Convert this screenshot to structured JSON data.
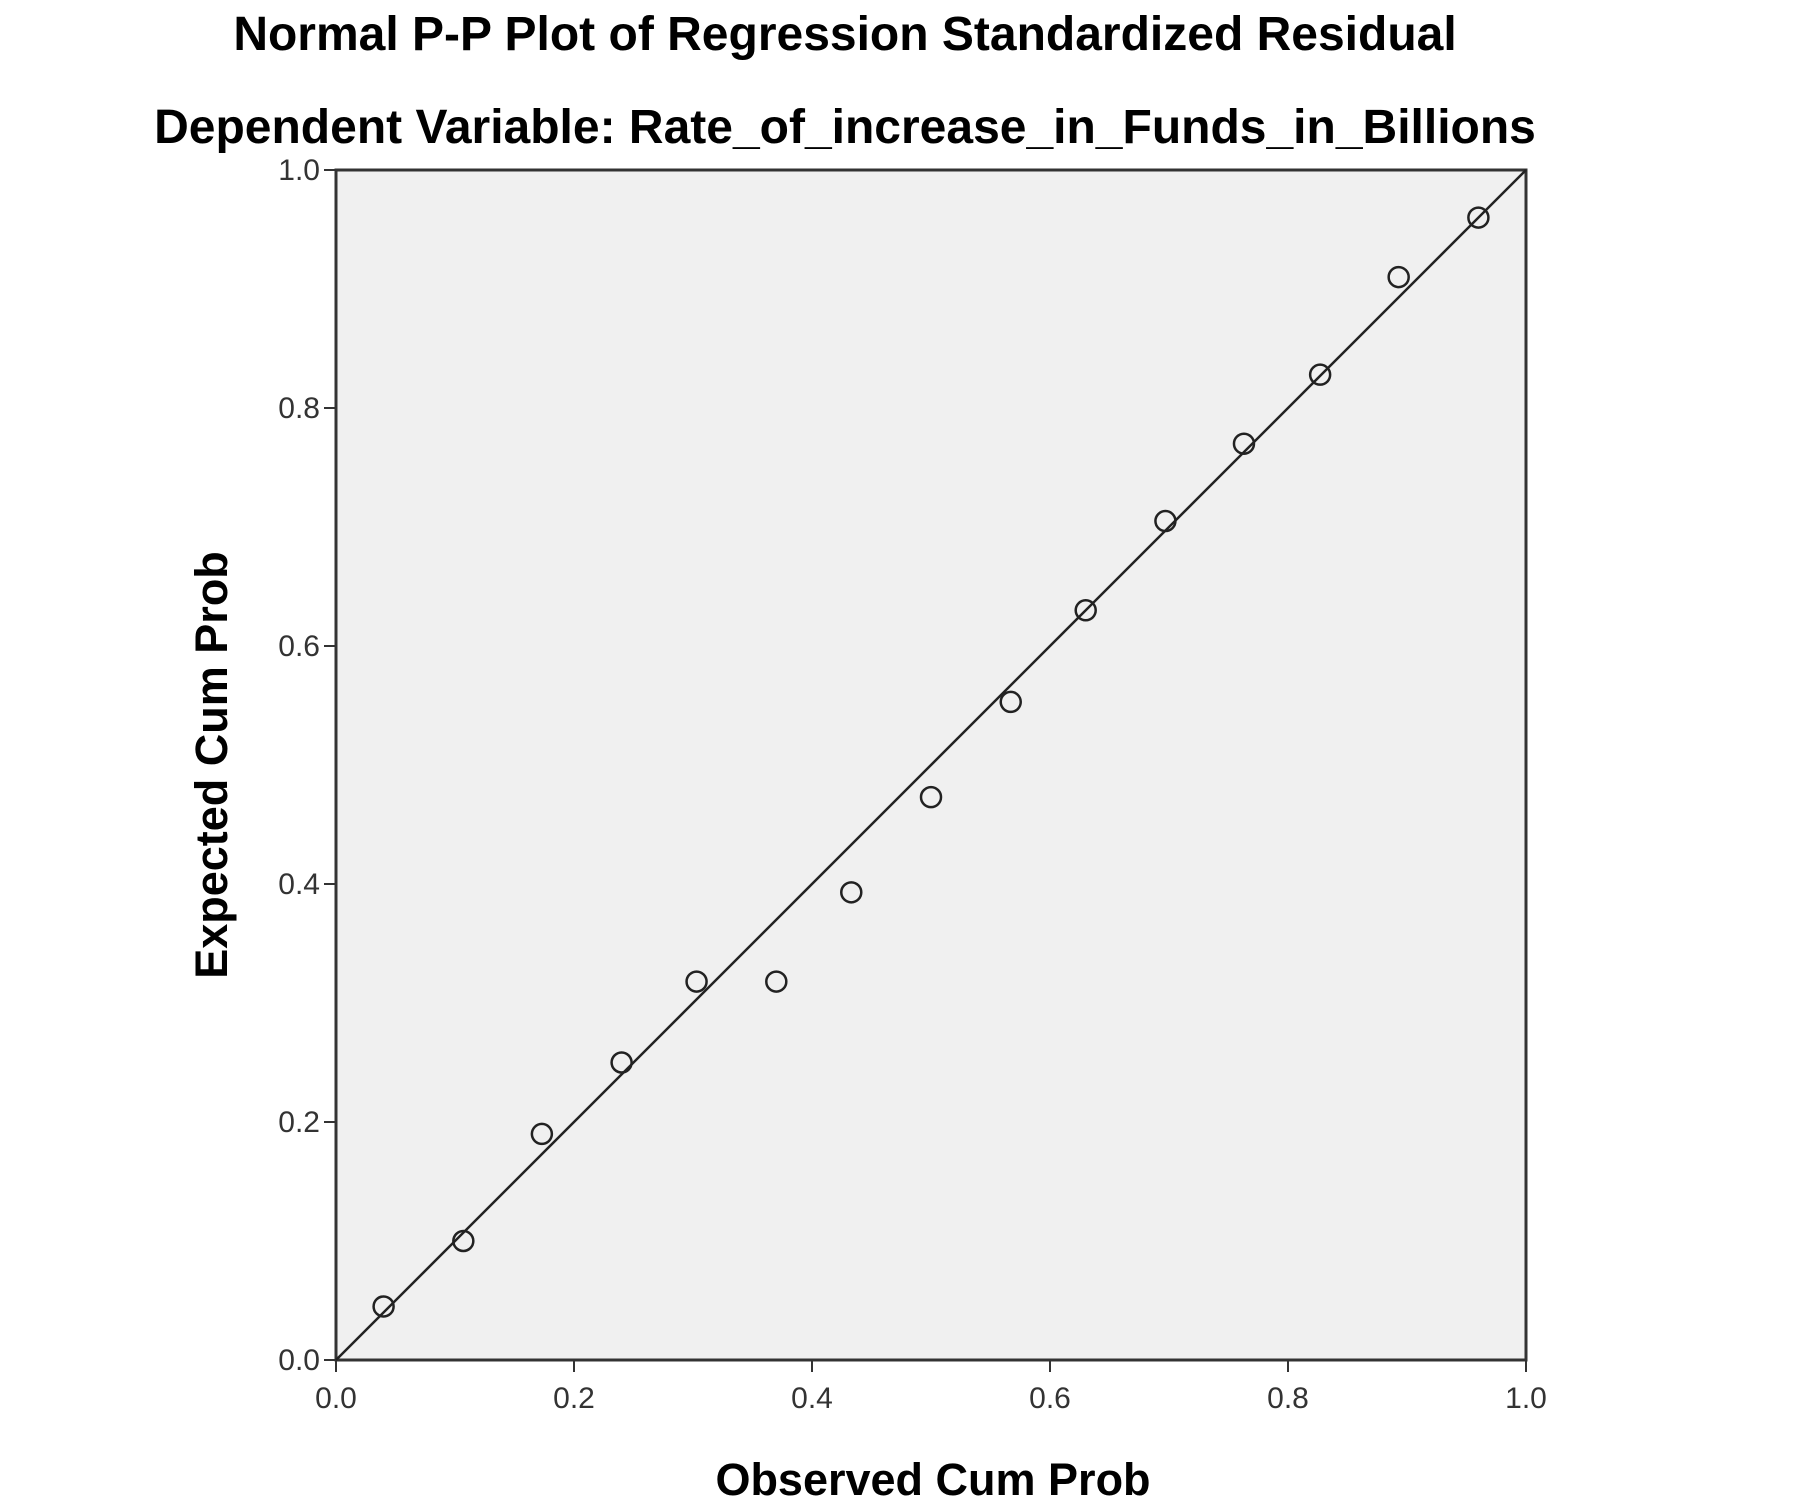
{
  "chart_data": {
    "type": "scatter",
    "title": "Normal P-P Plot of Regression Standardized Residual",
    "subtitle": "Dependent Variable: Rate_of_increase_in_Funds_in_Billions",
    "xlabel": "Observed Cum Prob",
    "ylabel": "Expected Cum Prob",
    "xlim": [
      0,
      1
    ],
    "ylim": [
      0,
      1
    ],
    "x_ticks": [
      "0.0",
      "0.2",
      "0.4",
      "0.6",
      "0.8",
      "1.0"
    ],
    "y_ticks": [
      "0.0",
      "0.2",
      "0.4",
      "0.6",
      "0.8",
      "1.0"
    ],
    "grid": false,
    "reference_line": {
      "from": [
        0,
        0
      ],
      "to": [
        1,
        1
      ]
    },
    "points": [
      {
        "x": 0.04,
        "y": 0.045
      },
      {
        "x": 0.107,
        "y": 0.1
      },
      {
        "x": 0.173,
        "y": 0.19
      },
      {
        "x": 0.24,
        "y": 0.25
      },
      {
        "x": 0.303,
        "y": 0.318
      },
      {
        "x": 0.37,
        "y": 0.318
      },
      {
        "x": 0.433,
        "y": 0.393
      },
      {
        "x": 0.5,
        "y": 0.473
      },
      {
        "x": 0.567,
        "y": 0.553
      },
      {
        "x": 0.63,
        "y": 0.63
      },
      {
        "x": 0.697,
        "y": 0.705
      },
      {
        "x": 0.763,
        "y": 0.77
      },
      {
        "x": 0.827,
        "y": 0.828
      },
      {
        "x": 0.893,
        "y": 0.91
      },
      {
        "x": 0.96,
        "y": 0.96
      }
    ],
    "colors": {
      "plot_background": "#f0f0f0",
      "frame": "#333333",
      "marker": "#222222",
      "line": "#222222"
    }
  }
}
